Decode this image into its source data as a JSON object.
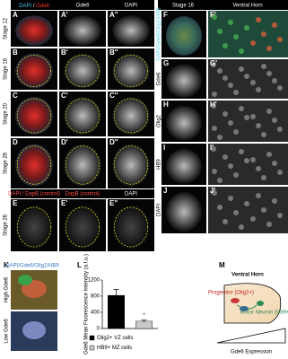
{
  "headers": {
    "col1": [
      "DAPI",
      "/",
      "Gde6"
    ],
    "col2": "Gde6",
    "col3": "DAPI",
    "stage": "Stage 16",
    "horn": "Ventral Horn"
  },
  "rows": [
    {
      "stage": "Stage 12",
      "labels": [
        "A",
        "A'",
        "A''"
      ]
    },
    {
      "stage": "Stage 16",
      "labels": [
        "B",
        "B'",
        "B''"
      ]
    },
    {
      "stage": "Stage 20",
      "labels": [
        "C",
        "C'",
        "C''"
      ]
    },
    {
      "stage": "Stage 26",
      "labels": [
        "D",
        "D'",
        "D''"
      ]
    }
  ],
  "control": {
    "headers": [
      "DAPI / DapB (control)",
      "DapB (control)",
      "DAPI"
    ],
    "stage": "Stage 26",
    "labels": [
      "E",
      "E'",
      "E''"
    ]
  },
  "right_rows": [
    {
      "labels": [
        "F",
        "F'"
      ],
      "stain": "DAPI/Gde6/Olig2/HB9"
    },
    {
      "labels": [
        "G",
        "G'"
      ],
      "stain": "Gde6"
    },
    {
      "labels": [
        "H",
        "H'"
      ],
      "stain": "Olig2"
    },
    {
      "labels": [
        "I",
        "I'"
      ],
      "stain": "HB9"
    },
    {
      "labels": [
        "J",
        "J'"
      ],
      "stain": "DAPI"
    }
  ],
  "panel_k": {
    "label": "K",
    "stain": "DAPI/Gde6/Olig2/HB9",
    "high": "High Gde6",
    "low": "Low Gde6"
  },
  "chart_data": {
    "type": "bar",
    "label": "L",
    "ylabel": "Gde6 Mean Fluorescence Intensity (a.f.u.)",
    "categories": [
      "Olig2+ VZ cells",
      "HB9+ MZ cells"
    ],
    "values": [
      820,
      180
    ],
    "errors": [
      150,
      30
    ],
    "colors": [
      "#000000",
      "#c8c8c8"
    ],
    "ylim": [
      0,
      1200
    ],
    "yticks": [
      0,
      400,
      800,
      1200
    ],
    "annotation": "*"
  },
  "panel_m": {
    "label": "M",
    "title": "Ventral Horn",
    "progenitor": "Progenitor (Olig2+)",
    "neuron": "Motor Neuron (Hb9+)",
    "gradient": "Gde6 Expression"
  }
}
